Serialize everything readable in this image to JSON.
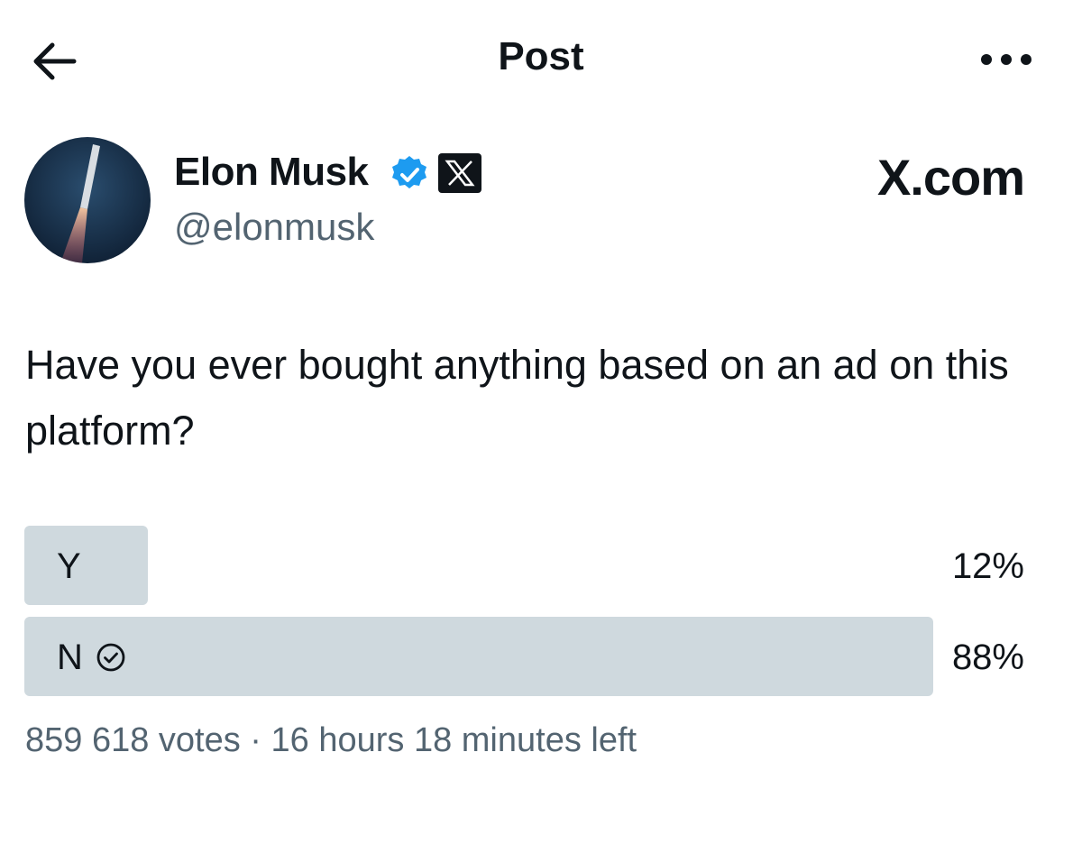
{
  "header": {
    "title": "Post"
  },
  "author": {
    "name": "Elon Musk",
    "handle": "@elonmusk",
    "site": "X.com"
  },
  "post": {
    "text": "Have you ever bought anything based on an ad on this platform?"
  },
  "poll": {
    "options": [
      {
        "label": "Y",
        "percent": 12,
        "percent_label": "12%",
        "selected": false
      },
      {
        "label": "N",
        "percent": 88,
        "percent_label": "88%",
        "selected": true
      }
    ],
    "footer": "859 618 votes · 16 hours 18 minutes left"
  }
}
